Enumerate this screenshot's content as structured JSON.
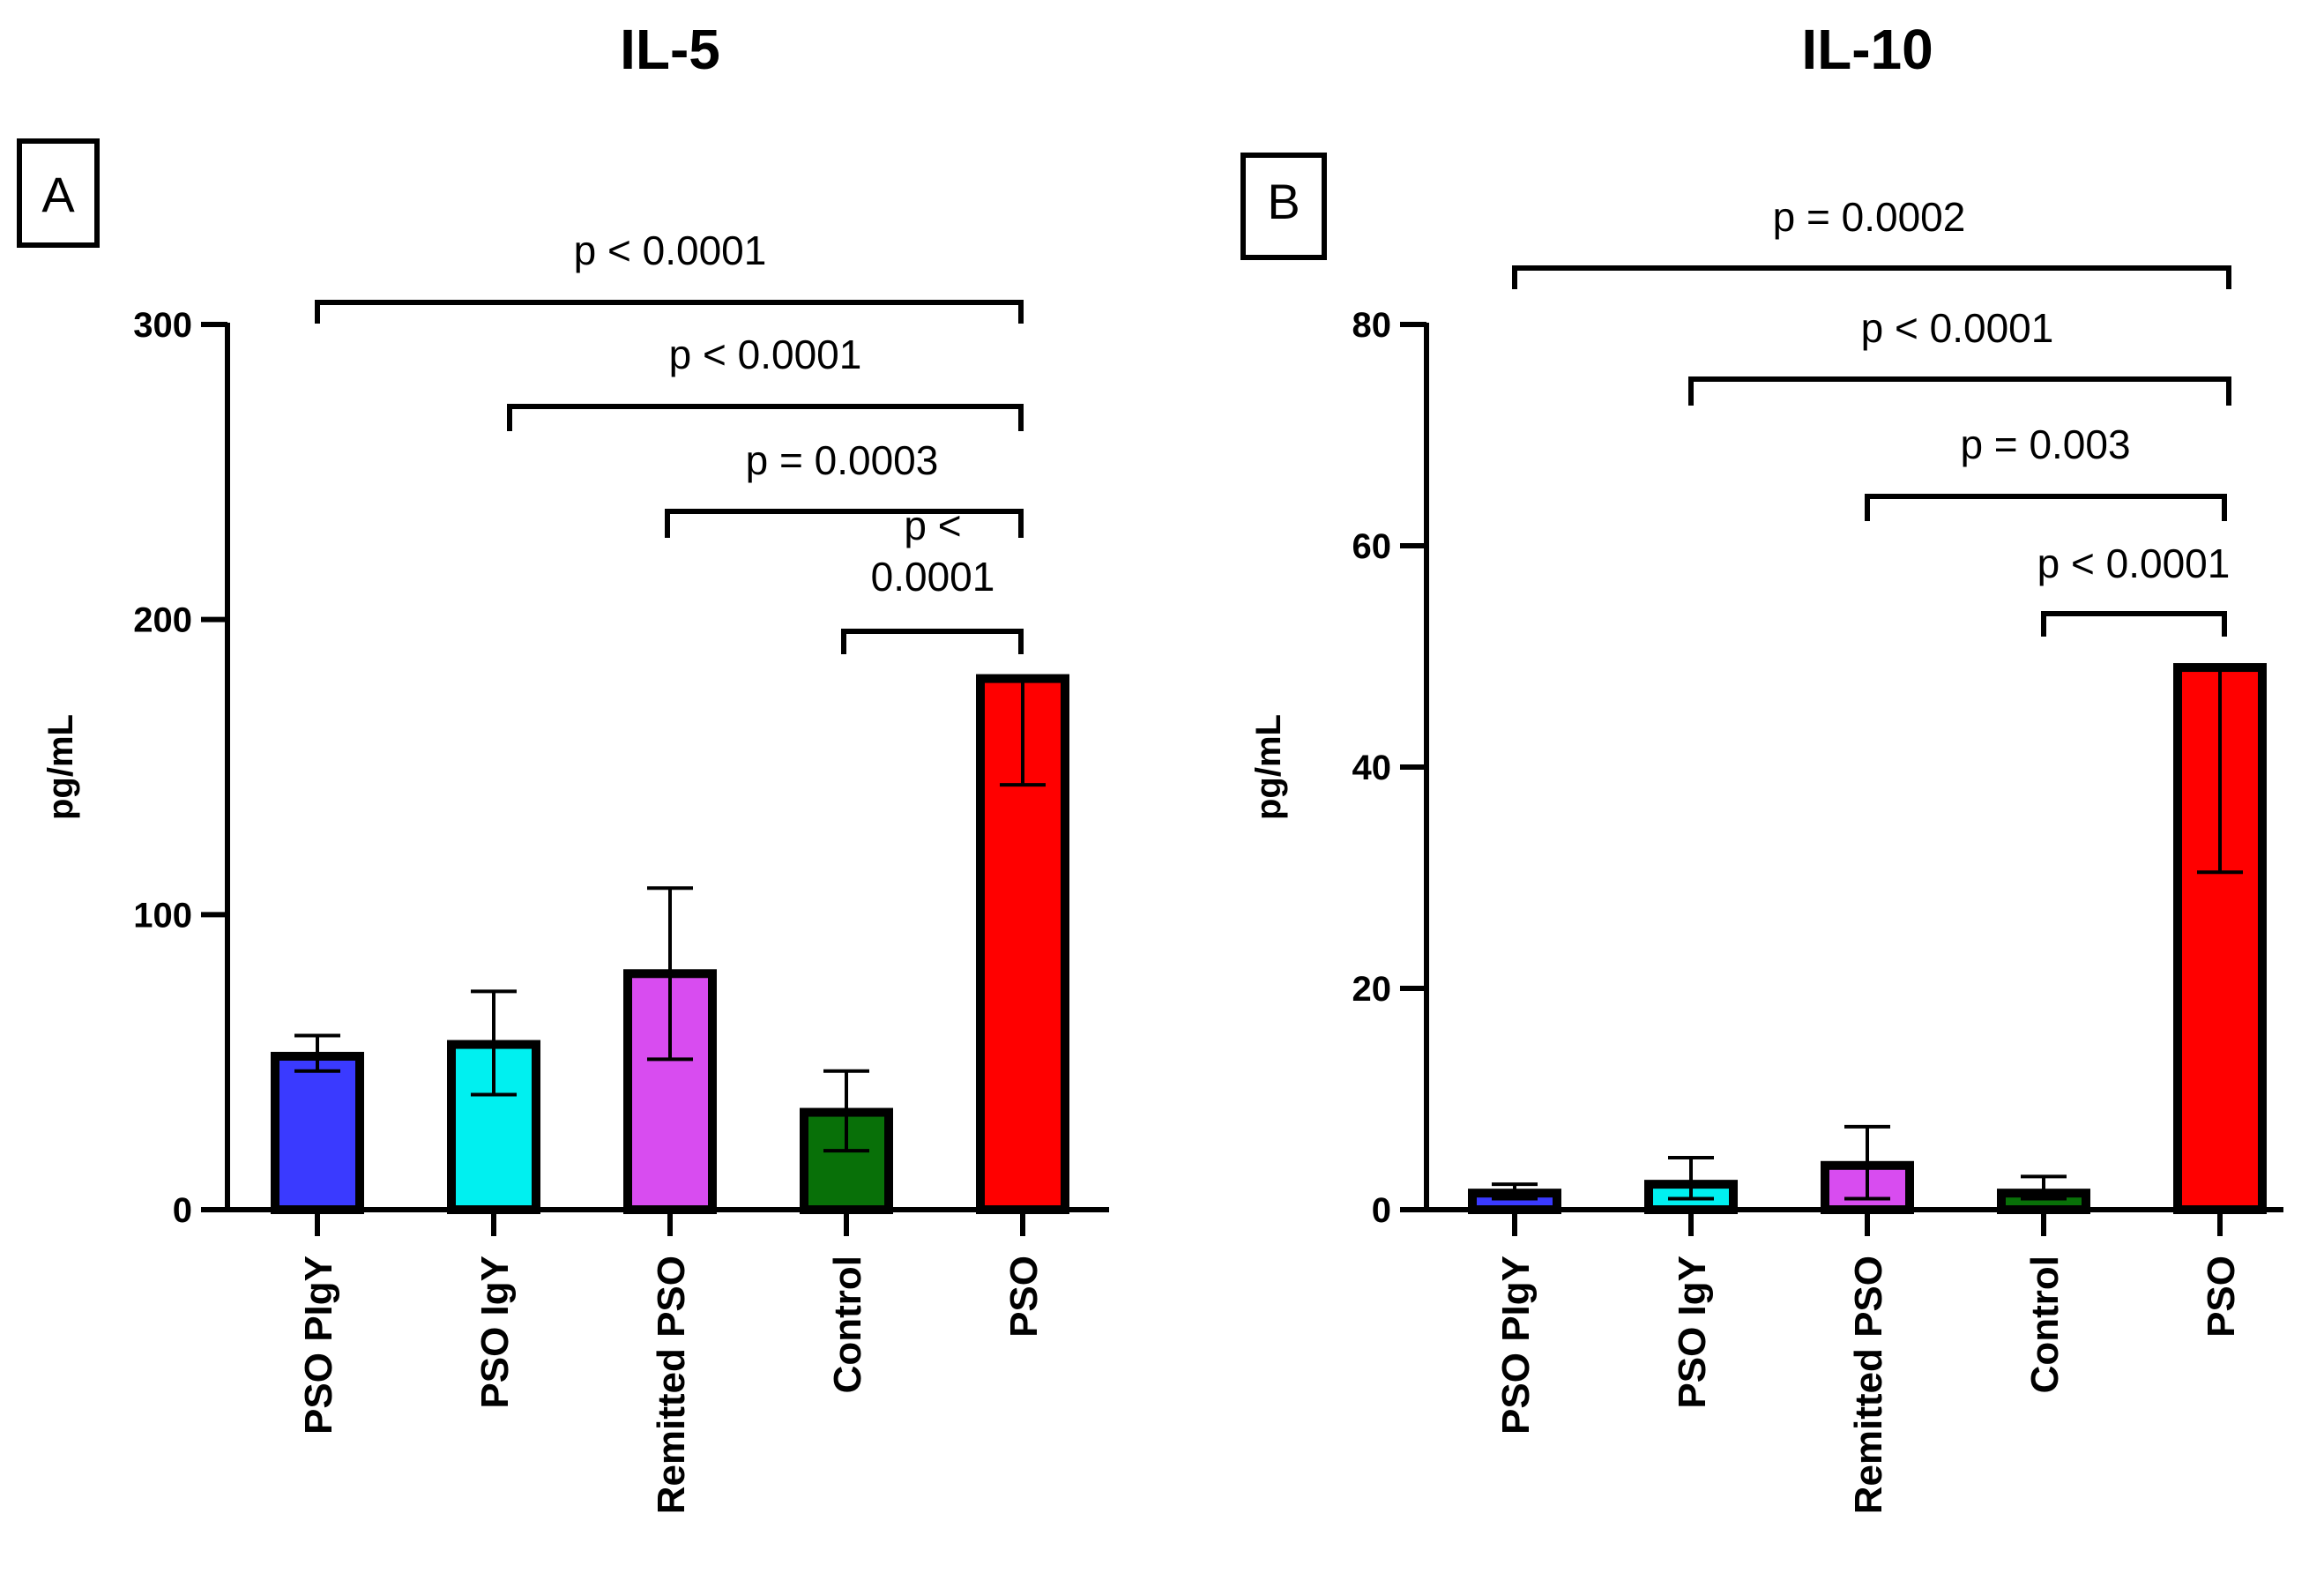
{
  "chart_data": [
    {
      "type": "bar",
      "panel": "A",
      "title": "IL-5",
      "ylabel": "pg/mL",
      "xlabel": "",
      "ylim": [
        0,
        300
      ],
      "yticks": [
        "0",
        "100",
        "200",
        "300"
      ],
      "categories": [
        "PSO PIgY",
        "PSO IgY",
        "Remitted PSO",
        "Control",
        "PSO"
      ],
      "values": [
        52,
        56,
        80,
        33,
        180
      ],
      "error_low": [
        47,
        39,
        51,
        20,
        144
      ],
      "error_high": [
        59,
        74,
        109,
        47,
        180
      ],
      "colors": [
        "#3a3aff",
        "#00f0f0",
        "#d84cf0",
        "#087008",
        "#ff0000"
      ],
      "comparisons": [
        {
          "from": "PSO PIgY",
          "to": "PSO",
          "label": "p < 0.0001"
        },
        {
          "from": "PSO IgY",
          "to": "PSO",
          "label": "p < 0.0001"
        },
        {
          "from": "Remitted PSO",
          "to": "PSO",
          "label": "p = 0.0003"
        },
        {
          "from": "Control",
          "to": "PSO",
          "label": "p < 0.0001",
          "label_lines": [
            "p <",
            "0.0001"
          ]
        }
      ]
    },
    {
      "type": "bar",
      "panel": "B",
      "title": "IL-10",
      "ylabel": "pg/mL",
      "xlabel": "",
      "ylim": [
        0,
        80
      ],
      "yticks": [
        "0",
        "20",
        "40",
        "60",
        "80"
      ],
      "categories": [
        "PSO PIgY",
        "PSO IgY",
        "Remitted PSO",
        "Control",
        "PSO"
      ],
      "values": [
        1.5,
        2.3,
        4,
        1.5,
        49
      ],
      "error_low": [
        1.0,
        1.0,
        1.0,
        1.0,
        30.5
      ],
      "error_high": [
        2.3,
        4.7,
        7.5,
        3.0,
        49
      ],
      "colors": [
        "#3a3aff",
        "#00f0f0",
        "#d84cf0",
        "#087008",
        "#ff0000"
      ],
      "comparisons": [
        {
          "from": "PSO PIgY",
          "to": "PSO",
          "label": "p = 0.0002"
        },
        {
          "from": "PSO IgY",
          "to": "PSO",
          "label": "p < 0.0001"
        },
        {
          "from": "Remitted PSO",
          "to": "PSO",
          "label": "p = 0.003"
        },
        {
          "from": "Control",
          "to": "PSO",
          "label": "p < 0.0001"
        }
      ]
    }
  ]
}
